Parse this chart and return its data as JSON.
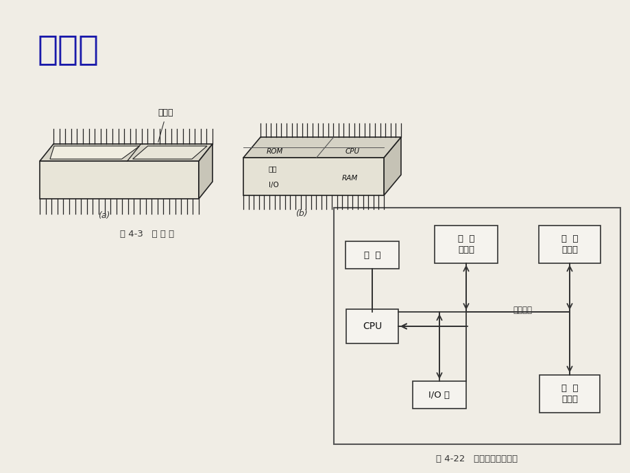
{
  "title": "单片机",
  "title_color": "#1a1aaa",
  "title_fontsize": 36,
  "bg_color": "#f0ede5",
  "fig43_caption": "图 4-3   单 片 机",
  "fig422_caption": "图 4-22   典型单片机结构图",
  "label_a": "(a)",
  "label_b": "(b)",
  "chip_label_a": "单片机",
  "block_labels": {
    "shizhong": "时  钟",
    "chengxu": "程  序\n存储器",
    "shuju": "数  据\n存储器",
    "cpu": "CPU",
    "io": "I/O 口",
    "dingshi": "定  时\n计数器",
    "bus": "片内总线"
  }
}
